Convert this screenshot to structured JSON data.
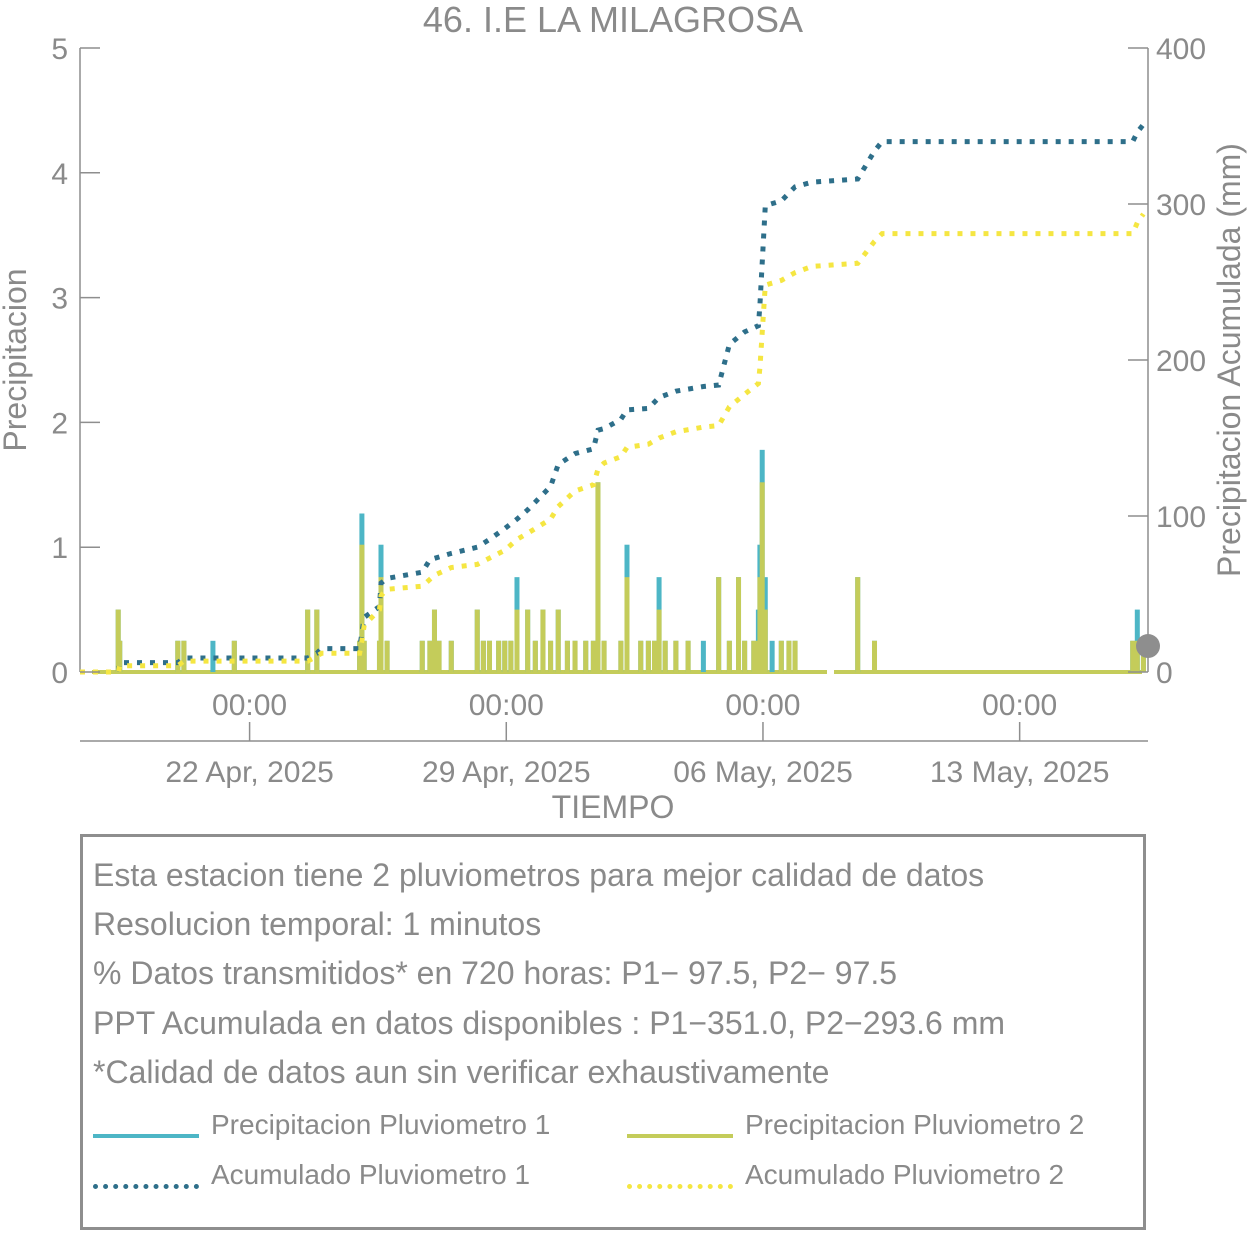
{
  "chart_data": {
    "type": "bar+line",
    "title": "46. I.E LA MILAGROSA",
    "xlabel": "TIEMPO",
    "ylabel": "Precipitacion",
    "y2label": "Precipitacion Acumulada (mm)",
    "xlim": [
      "2025-04-17T09:00",
      "2025-05-16T12:00"
    ],
    "ylim": [
      0,
      5
    ],
    "y2lim": [
      0,
      400
    ],
    "yticks": [
      0,
      1,
      2,
      3,
      4,
      5
    ],
    "y2ticks": [
      0,
      100,
      200,
      300,
      400
    ],
    "xticks": [
      {
        "time": "2025-04-22T00:00",
        "label_time": "00:00",
        "label_date": "22 Apr, 2025"
      },
      {
        "time": "2025-04-29T00:00",
        "label_time": "00:00",
        "label_date": "29 Apr, 2025"
      },
      {
        "time": "2025-05-06T00:00",
        "label_time": "00:00",
        "label_date": "06 May, 2025"
      },
      {
        "time": "2025-05-13T00:00",
        "label_time": "00:00",
        "label_date": "13 May, 2025"
      }
    ],
    "grid": false,
    "colors": {
      "p1": "#4db6c6",
      "p2": "#c4cc5a",
      "acc1": "#2e6f8a",
      "acc2": "#f5e642",
      "axis": "#8e8e8e",
      "text": "#8a8a8a"
    },
    "series": [
      {
        "name": "Precipitacion Pluviometro 1",
        "kind": "bar",
        "axis": "left",
        "points": [
          [
            "2025-04-18T10:00",
            0.5
          ],
          [
            "2025-04-18T11:00",
            0.25
          ],
          [
            "2025-04-20T01:00",
            0.25
          ],
          [
            "2025-04-20T05:00",
            0.25
          ],
          [
            "2025-04-21T00:00",
            0.25
          ],
          [
            "2025-04-21T14:00",
            0.25
          ],
          [
            "2025-04-23T14:00",
            0.5
          ],
          [
            "2025-04-23T20:00",
            0.5
          ],
          [
            "2025-04-25T00:00",
            0.25
          ],
          [
            "2025-04-25T01:30",
            1.27
          ],
          [
            "2025-04-25T03:00",
            0.25
          ],
          [
            "2025-04-25T13:00",
            0.25
          ],
          [
            "2025-04-25T14:00",
            1.02
          ],
          [
            "2025-04-25T18:00",
            0.25
          ],
          [
            "2025-04-26T17:00",
            0.25
          ],
          [
            "2025-04-26T22:00",
            0.25
          ],
          [
            "2025-04-27T01:00",
            0.5
          ],
          [
            "2025-04-27T04:00",
            0.25
          ],
          [
            "2025-04-27T12:00",
            0.25
          ],
          [
            "2025-04-28T05:00",
            0.5
          ],
          [
            "2025-04-28T09:00",
            0.25
          ],
          [
            "2025-04-28T13:00",
            0.25
          ],
          [
            "2025-04-28T19:00",
            0.25
          ],
          [
            "2025-04-28T23:00",
            0.25
          ],
          [
            "2025-04-29T03:00",
            0.25
          ],
          [
            "2025-04-29T07:00",
            0.76
          ],
          [
            "2025-04-29T14:00",
            0.5
          ],
          [
            "2025-04-29T19:00",
            0.25
          ],
          [
            "2025-04-30T00:00",
            0.5
          ],
          [
            "2025-04-30T05:00",
            0.25
          ],
          [
            "2025-04-30T10:00",
            0.5
          ],
          [
            "2025-04-30T16:00",
            0.25
          ],
          [
            "2025-04-30T21:00",
            0.25
          ],
          [
            "2025-05-01T04:00",
            0.25
          ],
          [
            "2025-05-01T09:00",
            0.25
          ],
          [
            "2025-05-01T12:00",
            1.52
          ],
          [
            "2025-05-01T16:00",
            0.25
          ],
          [
            "2025-05-02T03:00",
            0.25
          ],
          [
            "2025-05-02T07:00",
            1.02
          ],
          [
            "2025-05-02T16:00",
            0.25
          ],
          [
            "2025-05-02T21:00",
            0.25
          ],
          [
            "2025-05-03T01:00",
            0.25
          ],
          [
            "2025-05-03T04:00",
            0.76
          ],
          [
            "2025-05-03T08:00",
            0.25
          ],
          [
            "2025-05-03T15:00",
            0.25
          ],
          [
            "2025-05-03T23:00",
            0.25
          ],
          [
            "2025-05-04T09:00",
            0.25
          ],
          [
            "2025-05-04T19:00",
            0.76
          ],
          [
            "2025-05-05T02:00",
            0.25
          ],
          [
            "2025-05-05T08:00",
            0.76
          ],
          [
            "2025-05-05T12:00",
            0.25
          ],
          [
            "2025-05-05T18:00",
            0.25
          ],
          [
            "2025-05-05T21:00",
            0.5
          ],
          [
            "2025-05-05T22:00",
            1.02
          ],
          [
            "2025-05-05T23:30",
            1.78
          ],
          [
            "2025-05-06T01:30",
            0.76
          ],
          [
            "2025-05-06T06:00",
            0.25
          ],
          [
            "2025-05-06T12:00",
            0.25
          ],
          [
            "2025-05-06T17:00",
            0.25
          ],
          [
            "2025-05-06T21:00",
            0.25
          ],
          [
            "2025-05-08T14:00",
            0.76
          ],
          [
            "2025-05-09T01:00",
            0.25
          ],
          [
            "2025-05-16T02:00",
            0.25
          ],
          [
            "2025-05-16T05:00",
            0.5
          ],
          [
            "2025-05-16T09:00",
            0.25
          ]
        ]
      },
      {
        "name": "Precipitacion Pluviometro 2",
        "kind": "bar",
        "axis": "left",
        "points": [
          [
            "2025-04-18T10:00",
            0.5
          ],
          [
            "2025-04-18T11:00",
            0.25
          ],
          [
            "2025-04-20T01:00",
            0.25
          ],
          [
            "2025-04-20T05:00",
            0.25
          ],
          [
            "2025-04-21T14:00",
            0.25
          ],
          [
            "2025-04-23T14:00",
            0.5
          ],
          [
            "2025-04-23T20:00",
            0.5
          ],
          [
            "2025-04-25T00:00",
            0.25
          ],
          [
            "2025-04-25T01:30",
            1.02
          ],
          [
            "2025-04-25T03:00",
            0.25
          ],
          [
            "2025-04-25T13:00",
            0.25
          ],
          [
            "2025-04-25T14:00",
            0.76
          ],
          [
            "2025-04-25T18:00",
            0.25
          ],
          [
            "2025-04-26T17:00",
            0.25
          ],
          [
            "2025-04-26T22:00",
            0.25
          ],
          [
            "2025-04-27T01:00",
            0.5
          ],
          [
            "2025-04-27T04:00",
            0.25
          ],
          [
            "2025-04-27T12:00",
            0.25
          ],
          [
            "2025-04-28T05:00",
            0.5
          ],
          [
            "2025-04-28T09:00",
            0.25
          ],
          [
            "2025-04-28T13:00",
            0.25
          ],
          [
            "2025-04-28T19:00",
            0.25
          ],
          [
            "2025-04-28T23:00",
            0.25
          ],
          [
            "2025-04-29T03:00",
            0.25
          ],
          [
            "2025-04-29T07:00",
            0.5
          ],
          [
            "2025-04-29T14:00",
            0.5
          ],
          [
            "2025-04-29T19:00",
            0.25
          ],
          [
            "2025-04-30T00:00",
            0.5
          ],
          [
            "2025-04-30T05:00",
            0.25
          ],
          [
            "2025-04-30T10:00",
            0.5
          ],
          [
            "2025-04-30T16:00",
            0.25
          ],
          [
            "2025-04-30T21:00",
            0.25
          ],
          [
            "2025-05-01T04:00",
            0.25
          ],
          [
            "2025-05-01T09:00",
            0.25
          ],
          [
            "2025-05-01T12:00",
            1.52
          ],
          [
            "2025-05-01T16:00",
            0.25
          ],
          [
            "2025-05-02T03:00",
            0.25
          ],
          [
            "2025-05-02T07:00",
            0.76
          ],
          [
            "2025-05-02T16:00",
            0.25
          ],
          [
            "2025-05-02T21:00",
            0.25
          ],
          [
            "2025-05-03T01:00",
            0.25
          ],
          [
            "2025-05-03T04:00",
            0.5
          ],
          [
            "2025-05-03T08:00",
            0.25
          ],
          [
            "2025-05-03T15:00",
            0.25
          ],
          [
            "2025-05-03T23:00",
            0.25
          ],
          [
            "2025-05-04T19:00",
            0.76
          ],
          [
            "2025-05-05T02:00",
            0.25
          ],
          [
            "2025-05-05T08:00",
            0.76
          ],
          [
            "2025-05-05T12:00",
            0.25
          ],
          [
            "2025-05-05T18:00",
            0.25
          ],
          [
            "2025-05-05T21:00",
            0.25
          ],
          [
            "2025-05-05T22:00",
            0.76
          ],
          [
            "2025-05-05T23:30",
            1.52
          ],
          [
            "2025-05-06T01:30",
            0.5
          ],
          [
            "2025-05-06T12:00",
            0.25
          ],
          [
            "2025-05-06T17:00",
            0.25
          ],
          [
            "2025-05-06T21:00",
            0.25
          ],
          [
            "2025-05-08T14:00",
            0.76
          ],
          [
            "2025-05-09T01:00",
            0.25
          ],
          [
            "2025-05-16T02:00",
            0.25
          ],
          [
            "2025-05-16T05:00",
            0.25
          ],
          [
            "2025-05-16T09:00",
            0.25
          ]
        ]
      },
      {
        "name": "Acumulado Pluviometro 1",
        "kind": "dotted-line",
        "axis": "right",
        "points": [
          [
            "2025-04-17T09:00",
            0
          ],
          [
            "2025-04-18T10:00",
            0
          ],
          [
            "2025-04-18T11:00",
            6
          ],
          [
            "2025-04-20T01:00",
            6
          ],
          [
            "2025-04-20T05:00",
            9
          ],
          [
            "2025-04-23T14:00",
            9
          ],
          [
            "2025-04-23T20:00",
            12
          ],
          [
            "2025-04-23T23:00",
            15
          ],
          [
            "2025-04-25T00:00",
            15
          ],
          [
            "2025-04-25T01:30",
            25
          ],
          [
            "2025-04-25T03:00",
            35
          ],
          [
            "2025-04-25T13:00",
            42
          ],
          [
            "2025-04-25T14:00",
            57
          ],
          [
            "2025-04-25T18:00",
            60
          ],
          [
            "2025-04-26T17:00",
            64
          ],
          [
            "2025-04-26T22:00",
            72
          ],
          [
            "2025-04-27T12:00",
            76
          ],
          [
            "2025-04-28T05:00",
            80
          ],
          [
            "2025-04-28T13:00",
            85
          ],
          [
            "2025-04-28T23:00",
            92
          ],
          [
            "2025-04-29T07:00",
            98
          ],
          [
            "2025-04-29T14:00",
            104
          ],
          [
            "2025-04-30T00:00",
            114
          ],
          [
            "2025-04-30T05:00",
            119
          ],
          [
            "2025-04-30T10:00",
            133
          ],
          [
            "2025-04-30T21:00",
            140
          ],
          [
            "2025-05-01T09:00",
            143
          ],
          [
            "2025-05-01T12:00",
            155
          ],
          [
            "2025-05-01T16:00",
            156
          ],
          [
            "2025-05-02T03:00",
            162
          ],
          [
            "2025-05-02T07:00",
            168
          ],
          [
            "2025-05-02T21:00",
            169
          ],
          [
            "2025-05-03T04:00",
            176
          ],
          [
            "2025-05-03T15:00",
            180
          ],
          [
            "2025-05-04T09:00",
            183
          ],
          [
            "2025-05-04T19:00",
            184
          ],
          [
            "2025-05-05T02:00",
            210
          ],
          [
            "2025-05-05T12:00",
            218
          ],
          [
            "2025-05-05T21:00",
            222
          ],
          [
            "2025-05-05T22:00",
            235
          ],
          [
            "2025-05-06T01:30",
            299
          ],
          [
            "2025-05-06T12:00",
            302
          ],
          [
            "2025-05-06T21:00",
            311
          ],
          [
            "2025-05-07T08:00",
            314
          ],
          [
            "2025-05-08T14:00",
            316
          ],
          [
            "2025-05-09T01:00",
            334
          ],
          [
            "2025-05-09T06:00",
            340
          ],
          [
            "2025-05-16T02:00",
            340
          ],
          [
            "2025-05-16T05:00",
            346
          ],
          [
            "2025-05-16T09:00",
            351
          ]
        ]
      },
      {
        "name": "Acumulado Pluviometro 2",
        "kind": "dotted-line",
        "axis": "right",
        "points": [
          [
            "2025-04-17T09:00",
            0
          ],
          [
            "2025-04-18T10:00",
            0
          ],
          [
            "2025-04-18T11:00",
            4
          ],
          [
            "2025-04-20T01:00",
            4
          ],
          [
            "2025-04-20T05:00",
            7
          ],
          [
            "2025-04-23T14:00",
            7
          ],
          [
            "2025-04-23T20:00",
            10
          ],
          [
            "2025-04-23T23:00",
            12
          ],
          [
            "2025-04-25T00:00",
            12
          ],
          [
            "2025-04-25T01:30",
            20
          ],
          [
            "2025-04-25T03:00",
            30
          ],
          [
            "2025-04-25T13:00",
            40
          ],
          [
            "2025-04-25T14:00",
            49
          ],
          [
            "2025-04-25T18:00",
            53
          ],
          [
            "2025-04-26T17:00",
            55
          ],
          [
            "2025-04-27T01:00",
            62
          ],
          [
            "2025-04-27T12:00",
            67
          ],
          [
            "2025-04-28T05:00",
            69
          ],
          [
            "2025-04-28T13:00",
            73
          ],
          [
            "2025-04-28T23:00",
            78
          ],
          [
            "2025-04-29T07:00",
            85
          ],
          [
            "2025-04-29T14:00",
            89
          ],
          [
            "2025-04-30T00:00",
            95
          ],
          [
            "2025-04-30T05:00",
            98
          ],
          [
            "2025-04-30T10:00",
            106
          ],
          [
            "2025-04-30T21:00",
            116
          ],
          [
            "2025-05-01T09:00",
            120
          ],
          [
            "2025-05-01T12:00",
            130
          ],
          [
            "2025-05-01T16:00",
            134
          ],
          [
            "2025-05-02T03:00",
            138
          ],
          [
            "2025-05-02T07:00",
            144
          ],
          [
            "2025-05-02T21:00",
            146
          ],
          [
            "2025-05-03T04:00",
            150
          ],
          [
            "2025-05-03T15:00",
            154
          ],
          [
            "2025-05-04T09:00",
            157
          ],
          [
            "2025-05-04T19:00",
            158
          ],
          [
            "2025-05-05T02:00",
            170
          ],
          [
            "2025-05-05T12:00",
            178
          ],
          [
            "2025-05-05T21:00",
            185
          ],
          [
            "2025-05-05T22:00",
            195
          ],
          [
            "2025-05-06T01:30",
            248
          ],
          [
            "2025-05-06T12:00",
            251
          ],
          [
            "2025-05-06T21:00",
            256
          ],
          [
            "2025-05-07T08:00",
            260
          ],
          [
            "2025-05-08T14:00",
            262
          ],
          [
            "2025-05-09T01:00",
            276
          ],
          [
            "2025-05-09T06:00",
            281
          ],
          [
            "2025-05-16T02:00",
            281
          ],
          [
            "2025-05-16T05:00",
            288
          ],
          [
            "2025-05-16T09:00",
            293.6
          ]
        ]
      }
    ],
    "marker": {
      "time": "2025-05-16T12:00",
      "value": 0.2,
      "color": "#8e8e8e"
    }
  },
  "info": {
    "lines": [
      "Esta estacion tiene 2 pluviometros para mejor calidad de datos",
      "Resolucion temporal: 1 minutos",
      "% Datos transmitidos* en 720 horas: P1− 97.5, P2− 97.5",
      "PPT Acumulada en datos disponibles : P1−351.0, P2−293.6 mm",
      "*Calidad de datos aun sin verificar exhaustivamente"
    ]
  },
  "legend": {
    "items": [
      {
        "label": "Precipitacion Pluviometro 1",
        "style": "solid",
        "color": "#4db6c6"
      },
      {
        "label": "Precipitacion Pluviometro 2",
        "style": "solid",
        "color": "#c4cc5a"
      },
      {
        "label": "Acumulado Pluviometro 1",
        "style": "dotted",
        "color": "#2e6f8a"
      },
      {
        "label": "Acumulado Pluviometro 2",
        "style": "dotted",
        "color": "#f5e642"
      }
    ]
  }
}
